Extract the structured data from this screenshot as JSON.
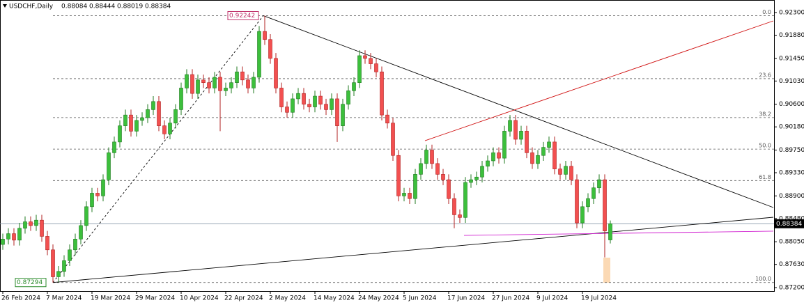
{
  "chart_data": {
    "type": "candlestick",
    "title": "USDCHF,Daily",
    "categories": [
      "26 Feb 2024",
      null,
      null,
      null,
      null,
      null,
      null,
      null,
      "7 Mar 2024",
      null,
      null,
      null,
      null,
      null,
      null,
      null,
      "19 Mar 2024",
      null,
      null,
      null,
      null,
      null,
      null,
      null,
      "29 Mar 2024",
      null,
      null,
      null,
      null,
      null,
      null,
      null,
      "10 Apr 2024",
      null,
      null,
      null,
      null,
      null,
      null,
      null,
      "22 Apr 2024",
      null,
      null,
      null,
      null,
      null,
      null,
      null,
      "2 May 2024",
      null,
      null,
      null,
      null,
      null,
      null,
      null,
      "14 May 2024",
      null,
      null,
      null,
      null,
      null,
      null,
      null,
      "24 May 2024",
      null,
      null,
      null,
      null,
      null,
      null,
      null,
      "5 Jun 2024",
      null,
      null,
      null,
      null,
      null,
      null,
      null,
      "17 Jun 2024",
      null,
      null,
      null,
      null,
      null,
      null,
      null,
      "27 Jun 2024",
      null,
      null,
      null,
      null,
      null,
      null,
      null,
      "9 Jul 2024",
      null,
      null,
      null,
      null,
      null,
      null,
      null,
      "19 Jul 2024",
      null,
      null,
      null,
      null,
      null
    ],
    "open": [
      0.88,
      0.881,
      0.882,
      0.8808,
      0.883,
      0.8842,
      0.8835,
      0.8845,
      0.8815,
      0.879,
      0.874,
      0.875,
      0.877,
      0.879,
      0.881,
      0.8835,
      0.887,
      0.8895,
      0.889,
      0.892,
      0.897,
      0.899,
      0.902,
      0.904,
      0.901,
      0.903,
      0.9035,
      0.905,
      0.9065,
      0.902,
      0.9005,
      0.9025,
      0.905,
      0.909,
      0.9115,
      0.908,
      0.9105,
      0.91,
      0.909,
      0.911,
      0.9085,
      0.909,
      0.91,
      0.912,
      0.9105,
      0.909,
      0.911,
      0.9195,
      0.918,
      0.9145,
      0.909,
      0.9055,
      0.9045,
      0.907,
      0.908,
      0.906,
      0.9055,
      0.9075,
      0.906,
      0.905,
      0.907,
      0.902,
      0.906,
      0.9085,
      0.91,
      0.915,
      0.9145,
      0.9135,
      0.912,
      0.904,
      0.9025,
      0.8965,
      0.889,
      0.8895,
      0.8885,
      0.893,
      0.895,
      0.8975,
      0.895,
      0.893,
      0.892,
      0.8885,
      0.8855,
      0.885,
      0.8915,
      0.892,
      0.8925,
      0.8945,
      0.8955,
      0.897,
      0.896,
      0.901,
      0.903,
      0.8995,
      0.901,
      0.897,
      0.895,
      0.8965,
      0.898,
      0.899,
      0.894,
      0.893,
      0.8945,
      0.892,
      0.884,
      0.887,
      0.8885,
      0.8905,
      0.892,
      0.88084
    ],
    "high": [
      0.882,
      0.883,
      0.883,
      0.884,
      0.8852,
      0.8852,
      0.8855,
      0.8855,
      0.8825,
      0.88,
      0.876,
      0.878,
      0.88,
      0.882,
      0.8845,
      0.888,
      0.8905,
      0.8905,
      0.893,
      0.898,
      0.9,
      0.903,
      0.905,
      0.905,
      0.904,
      0.9045,
      0.906,
      0.9075,
      0.9075,
      0.903,
      0.9035,
      0.906,
      0.91,
      0.9125,
      0.9125,
      0.9115,
      0.9115,
      0.911,
      0.912,
      0.912,
      0.91,
      0.911,
      0.913,
      0.913,
      0.9115,
      0.912,
      0.9205,
      0.92242,
      0.919,
      0.9155,
      0.91,
      0.9065,
      0.908,
      0.909,
      0.909,
      0.907,
      0.9085,
      0.9085,
      0.907,
      0.908,
      0.908,
      0.907,
      0.9095,
      0.911,
      0.916,
      0.916,
      0.9155,
      0.9145,
      0.913,
      0.905,
      0.9035,
      0.8975,
      0.8905,
      0.8905,
      0.894,
      0.896,
      0.8985,
      0.8985,
      0.896,
      0.894,
      0.893,
      0.8895,
      0.8865,
      0.8925,
      0.893,
      0.8935,
      0.8955,
      0.8965,
      0.898,
      0.898,
      0.902,
      0.904,
      0.904,
      0.902,
      0.902,
      0.898,
      0.8975,
      0.899,
      0.9,
      0.9,
      0.895,
      0.8955,
      0.8955,
      0.893,
      0.888,
      0.8895,
      0.8915,
      0.893,
      0.893,
      0.88444
    ],
    "low": [
      0.879,
      0.88,
      0.8798,
      0.8798,
      0.882,
      0.8825,
      0.8825,
      0.8805,
      0.878,
      0.87294,
      0.873,
      0.874,
      0.876,
      0.878,
      0.88,
      0.8825,
      0.886,
      0.888,
      0.888,
      0.891,
      0.896,
      0.898,
      0.901,
      0.9,
      0.9,
      0.902,
      0.9025,
      0.904,
      0.901,
      0.8995,
      0.8995,
      0.9015,
      0.904,
      0.908,
      0.907,
      0.907,
      0.909,
      0.908,
      0.908,
      0.901,
      0.9075,
      0.908,
      0.909,
      0.9095,
      0.908,
      0.908,
      0.91,
      0.917,
      0.9135,
      0.908,
      0.9045,
      0.9035,
      0.9035,
      0.906,
      0.905,
      0.9045,
      0.9045,
      0.905,
      0.904,
      0.904,
      0.899,
      0.901,
      0.905,
      0.9075,
      0.909,
      0.9135,
      0.9125,
      0.911,
      0.903,
      0.9015,
      0.8955,
      0.888,
      0.888,
      0.8875,
      0.8875,
      0.892,
      0.894,
      0.894,
      0.892,
      0.891,
      0.8875,
      0.883,
      0.884,
      0.884,
      0.8905,
      0.891,
      0.8915,
      0.8935,
      0.8945,
      0.895,
      0.895,
      0.9,
      0.8985,
      0.8985,
      0.896,
      0.894,
      0.894,
      0.8955,
      0.897,
      0.893,
      0.892,
      0.892,
      0.891,
      0.883,
      0.883,
      0.886,
      0.8875,
      0.8895,
      0.8776,
      0.88019
    ],
    "close": [
      0.881,
      0.882,
      0.8808,
      0.883,
      0.8842,
      0.8835,
      0.8845,
      0.8815,
      0.879,
      0.874,
      0.875,
      0.877,
      0.879,
      0.881,
      0.8835,
      0.887,
      0.8895,
      0.889,
      0.892,
      0.897,
      0.899,
      0.902,
      0.904,
      0.901,
      0.903,
      0.9035,
      0.905,
      0.9065,
      0.902,
      0.9005,
      0.9025,
      0.905,
      0.909,
      0.9115,
      0.908,
      0.9105,
      0.91,
      0.909,
      0.911,
      0.9085,
      0.909,
      0.91,
      0.912,
      0.9105,
      0.909,
      0.911,
      0.9195,
      0.918,
      0.9145,
      0.909,
      0.9055,
      0.9045,
      0.907,
      0.908,
      0.906,
      0.9055,
      0.9075,
      0.906,
      0.905,
      0.907,
      0.902,
      0.906,
      0.9085,
      0.91,
      0.915,
      0.9145,
      0.9135,
      0.912,
      0.904,
      0.9025,
      0.8965,
      0.889,
      0.8895,
      0.8885,
      0.893,
      0.895,
      0.8975,
      0.895,
      0.893,
      0.892,
      0.8885,
      0.8855,
      0.885,
      0.8915,
      0.892,
      0.8925,
      0.8945,
      0.8955,
      0.897,
      0.896,
      0.901,
      0.903,
      0.8995,
      0.901,
      0.897,
      0.895,
      0.8965,
      0.898,
      0.899,
      0.894,
      0.893,
      0.8945,
      0.892,
      0.884,
      0.887,
      0.8885,
      0.8905,
      0.892,
      0.8825,
      0.88384
    ],
    "up_color": "#3cbf3c",
    "down_color": "#f25050",
    "ylim": [
      0.872,
      0.923
    ],
    "yticks": [
      {
        "value": 0.923,
        "label": "0.92300"
      },
      {
        "value": 0.9188,
        "label": "0.91880"
      },
      {
        "value": 0.9145,
        "label": "0.91450"
      },
      {
        "value": 0.9103,
        "label": "0.91030"
      },
      {
        "value": 0.906,
        "label": "0.90600"
      },
      {
        "value": 0.9018,
        "label": "0.90180"
      },
      {
        "value": 0.8975,
        "label": "0.89750"
      },
      {
        "value": 0.8933,
        "label": "0.89330"
      },
      {
        "value": 0.889,
        "label": "0.88900"
      },
      {
        "value": 0.8848,
        "label": "0.88480"
      },
      {
        "value": 0.8805,
        "label": "0.88050"
      },
      {
        "value": 0.8763,
        "label": "0.87630"
      },
      {
        "value": 0.872,
        "label": "0.87200"
      }
    ],
    "fib_levels": [
      {
        "value": 0.92242,
        "label": "0.0"
      },
      {
        "value": 0.91074,
        "label": "23.6"
      },
      {
        "value": 0.90352,
        "label": "38.2"
      },
      {
        "value": 0.89768,
        "label": "50.0"
      },
      {
        "value": 0.89184,
        "label": "61.8"
      },
      {
        "value": 0.87294,
        "label": "100.0"
      }
    ],
    "lines": [
      {
        "color": "#000000",
        "dashed": false,
        "x": [
          46.75,
          138.25
        ],
        "y": [
          0.92242,
          0.88685
        ]
      },
      {
        "color": "#000000",
        "dashed": false,
        "x": [
          9,
          138.25
        ],
        "y": [
          0.87294,
          0.88504
        ]
      },
      {
        "color": "#000000",
        "dashed": true,
        "x": [
          9,
          46.75
        ],
        "y": [
          0.87294,
          0.92242
        ]
      },
      {
        "color": "#d01010",
        "dashed": false,
        "x": [
          75.75,
          138.25
        ],
        "y": [
          0.89924,
          0.92145
        ]
      },
      {
        "color": "#d020d0",
        "dashed": false,
        "x": [
          82.75,
          138.25
        ],
        "y": [
          0.88168,
          0.88246
        ]
      }
    ]
  }
}
